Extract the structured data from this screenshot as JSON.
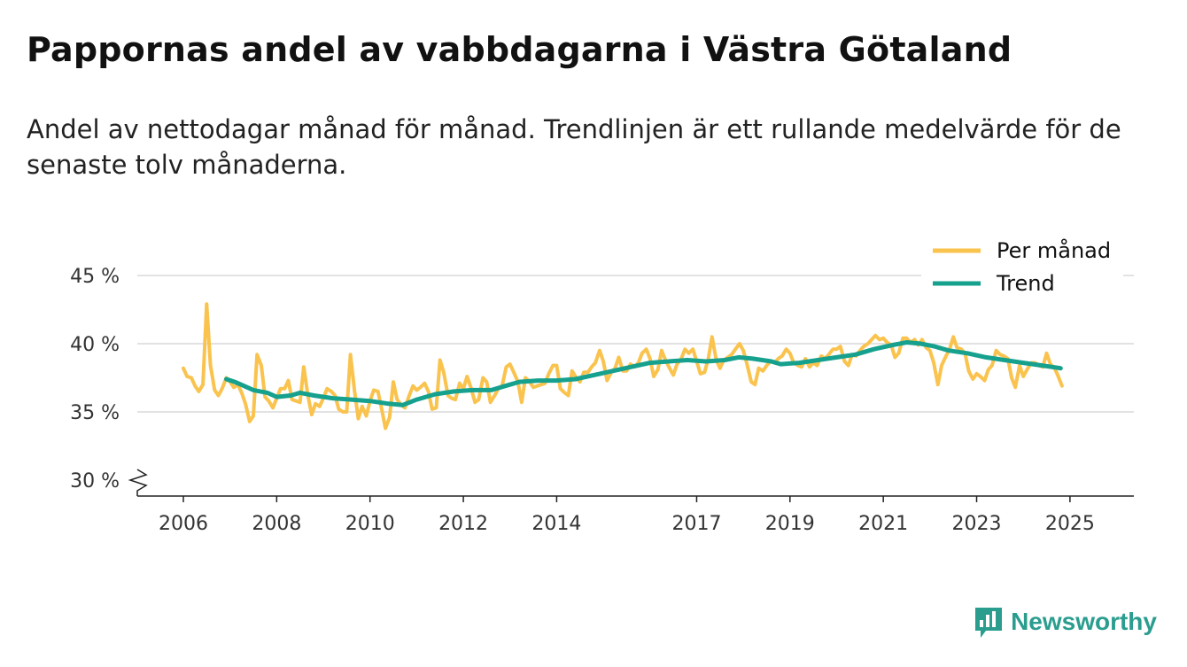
{
  "header": {
    "title": "Pappornas andel av vabbdagarna i Västra Götaland",
    "subtitle": "Andel av nettodagar månad för månad. Trendlinjen är ett rullande medelvärde för de senaste tolv månaderna."
  },
  "brand": {
    "name": "Newsworthy",
    "color": "#2a9d8f"
  },
  "chart_data": {
    "type": "line",
    "title": "Pappornas andel av vabbdagarna i Västra Götaland",
    "xlabel": "",
    "ylabel": "",
    "y_ticks": [
      30,
      35,
      40,
      45
    ],
    "y_tick_labels": [
      "30 %",
      "35 %",
      "40 %",
      "45 %"
    ],
    "y_axis_break": true,
    "x_ticks": [
      2006,
      2008,
      2010,
      2012,
      2014,
      2017,
      2019,
      2021,
      2023,
      2025
    ],
    "x_tick_labels": [
      "2006",
      "2008",
      "2010",
      "2012",
      "2014",
      "2017",
      "2019",
      "2021",
      "2023",
      "2025"
    ],
    "xlim": [
      2006,
      2025.42
    ],
    "ylim": [
      29,
      45
    ],
    "legend_position": "top-right",
    "series": [
      {
        "name": "Per månad",
        "color": "#f9c34e",
        "points": [
          [
            2006.0,
            38.2
          ],
          [
            2006.08,
            37.6
          ],
          [
            2006.17,
            37.5
          ],
          [
            2006.25,
            36.9
          ],
          [
            2006.33,
            36.5
          ],
          [
            2006.42,
            37.0
          ],
          [
            2006.5,
            42.9
          ],
          [
            2006.58,
            38.4
          ],
          [
            2006.67,
            36.6
          ],
          [
            2006.75,
            36.2
          ],
          [
            2006.83,
            36.7
          ],
          [
            2006.92,
            37.5
          ],
          [
            2007.0,
            37.2
          ],
          [
            2007.08,
            36.8
          ],
          [
            2007.17,
            37.0
          ],
          [
            2007.25,
            36.4
          ],
          [
            2007.33,
            35.6
          ],
          [
            2007.42,
            34.3
          ],
          [
            2007.5,
            34.7
          ],
          [
            2007.58,
            39.2
          ],
          [
            2007.67,
            38.4
          ],
          [
            2007.75,
            36.1
          ],
          [
            2007.83,
            35.8
          ],
          [
            2007.92,
            35.3
          ],
          [
            2008.0,
            36.0
          ],
          [
            2008.08,
            36.7
          ],
          [
            2008.17,
            36.7
          ],
          [
            2008.25,
            37.3
          ],
          [
            2008.33,
            35.9
          ],
          [
            2008.42,
            35.8
          ],
          [
            2008.5,
            35.7
          ],
          [
            2008.58,
            38.3
          ],
          [
            2008.67,
            36.2
          ],
          [
            2008.75,
            34.8
          ],
          [
            2008.83,
            35.6
          ],
          [
            2008.92,
            35.4
          ],
          [
            2009.0,
            36.0
          ],
          [
            2009.08,
            36.7
          ],
          [
            2009.17,
            36.5
          ],
          [
            2009.25,
            36.2
          ],
          [
            2009.33,
            35.2
          ],
          [
            2009.42,
            35.0
          ],
          [
            2009.5,
            35.0
          ],
          [
            2009.58,
            39.2
          ],
          [
            2009.67,
            36.5
          ],
          [
            2009.75,
            34.5
          ],
          [
            2009.83,
            35.4
          ],
          [
            2009.92,
            34.7
          ],
          [
            2010.0,
            35.8
          ],
          [
            2010.08,
            36.6
          ],
          [
            2010.17,
            36.5
          ],
          [
            2010.25,
            35.2
          ],
          [
            2010.33,
            33.8
          ],
          [
            2010.42,
            34.6
          ],
          [
            2010.5,
            37.2
          ],
          [
            2010.58,
            35.9
          ],
          [
            2010.67,
            35.5
          ],
          [
            2010.75,
            35.3
          ],
          [
            2010.83,
            36.1
          ],
          [
            2010.92,
            36.9
          ],
          [
            2011.0,
            36.6
          ],
          [
            2011.08,
            36.8
          ],
          [
            2011.17,
            37.1
          ],
          [
            2011.25,
            36.5
          ],
          [
            2011.33,
            35.2
          ],
          [
            2011.42,
            35.3
          ],
          [
            2011.5,
            38.8
          ],
          [
            2011.58,
            37.9
          ],
          [
            2011.67,
            36.2
          ],
          [
            2011.75,
            36.0
          ],
          [
            2011.83,
            35.9
          ],
          [
            2011.92,
            37.1
          ],
          [
            2012.0,
            36.7
          ],
          [
            2012.08,
            37.6
          ],
          [
            2012.17,
            36.7
          ],
          [
            2012.25,
            35.7
          ],
          [
            2012.33,
            35.9
          ],
          [
            2012.42,
            37.5
          ],
          [
            2012.5,
            37.2
          ],
          [
            2012.58,
            35.7
          ],
          [
            2012.67,
            36.2
          ],
          [
            2012.75,
            36.7
          ],
          [
            2012.83,
            36.9
          ],
          [
            2012.92,
            38.3
          ],
          [
            2013.0,
            38.5
          ],
          [
            2013.08,
            37.9
          ],
          [
            2013.17,
            37.2
          ],
          [
            2013.25,
            35.7
          ],
          [
            2013.33,
            37.5
          ],
          [
            2013.42,
            37.2
          ],
          [
            2013.5,
            36.8
          ],
          [
            2013.58,
            36.9
          ],
          [
            2013.67,
            37.0
          ],
          [
            2013.75,
            37.1
          ],
          [
            2013.83,
            37.8
          ],
          [
            2013.92,
            38.4
          ],
          [
            2014.0,
            38.4
          ],
          [
            2014.08,
            36.7
          ],
          [
            2014.17,
            36.4
          ],
          [
            2014.25,
            36.2
          ],
          [
            2014.33,
            38.0
          ],
          [
            2014.42,
            37.5
          ],
          [
            2014.5,
            37.2
          ],
          [
            2014.58,
            37.9
          ],
          [
            2014.67,
            37.9
          ],
          [
            2014.75,
            38.3
          ],
          [
            2014.83,
            38.6
          ],
          [
            2014.92,
            39.5
          ],
          [
            2015.0,
            38.7
          ],
          [
            2015.08,
            37.3
          ],
          [
            2015.17,
            37.9
          ],
          [
            2015.25,
            38.2
          ],
          [
            2015.33,
            39.0
          ],
          [
            2015.42,
            38.0
          ],
          [
            2015.5,
            38.0
          ],
          [
            2015.58,
            38.5
          ],
          [
            2015.67,
            38.3
          ],
          [
            2015.75,
            38.6
          ],
          [
            2015.83,
            39.3
          ],
          [
            2015.92,
            39.6
          ],
          [
            2016.0,
            38.9
          ],
          [
            2016.08,
            37.6
          ],
          [
            2016.17,
            38.1
          ],
          [
            2016.25,
            39.5
          ],
          [
            2016.33,
            38.8
          ],
          [
            2016.42,
            38.2
          ],
          [
            2016.5,
            37.7
          ],
          [
            2016.58,
            38.5
          ],
          [
            2016.67,
            38.9
          ],
          [
            2016.75,
            39.6
          ],
          [
            2016.83,
            39.3
          ],
          [
            2016.92,
            39.6
          ],
          [
            2017.0,
            38.7
          ],
          [
            2017.08,
            37.8
          ],
          [
            2017.17,
            37.9
          ],
          [
            2017.25,
            38.9
          ],
          [
            2017.33,
            40.5
          ],
          [
            2017.42,
            38.8
          ],
          [
            2017.5,
            38.2
          ],
          [
            2017.58,
            38.8
          ],
          [
            2017.67,
            39.0
          ],
          [
            2017.75,
            39.2
          ],
          [
            2017.83,
            39.6
          ],
          [
            2017.92,
            40.0
          ],
          [
            2018.0,
            39.5
          ],
          [
            2018.08,
            38.5
          ],
          [
            2018.17,
            37.2
          ],
          [
            2018.25,
            37.0
          ],
          [
            2018.33,
            38.2
          ],
          [
            2018.42,
            38.0
          ],
          [
            2018.5,
            38.4
          ],
          [
            2018.58,
            38.7
          ],
          [
            2018.67,
            38.6
          ],
          [
            2018.75,
            38.9
          ],
          [
            2018.83,
            39.1
          ],
          [
            2018.92,
            39.6
          ],
          [
            2019.0,
            39.3
          ],
          [
            2019.08,
            38.6
          ],
          [
            2019.17,
            38.4
          ],
          [
            2019.25,
            38.3
          ],
          [
            2019.33,
            38.9
          ],
          [
            2019.42,
            38.3
          ],
          [
            2019.5,
            38.6
          ],
          [
            2019.58,
            38.4
          ],
          [
            2019.67,
            39.1
          ],
          [
            2019.75,
            38.9
          ],
          [
            2019.83,
            39.2
          ],
          [
            2019.92,
            39.6
          ],
          [
            2020.0,
            39.6
          ],
          [
            2020.08,
            39.8
          ],
          [
            2020.17,
            38.7
          ],
          [
            2020.25,
            38.4
          ],
          [
            2020.33,
            39.2
          ],
          [
            2020.42,
            39.1
          ],
          [
            2020.5,
            39.5
          ],
          [
            2020.58,
            39.8
          ],
          [
            2020.67,
            40.0
          ],
          [
            2020.75,
            40.3
          ],
          [
            2020.83,
            40.6
          ],
          [
            2020.92,
            40.3
          ],
          [
            2021.0,
            40.4
          ],
          [
            2021.08,
            40.1
          ],
          [
            2021.17,
            39.9
          ],
          [
            2021.25,
            39.0
          ],
          [
            2021.33,
            39.3
          ],
          [
            2021.42,
            40.4
          ],
          [
            2021.5,
            40.4
          ],
          [
            2021.58,
            40.1
          ],
          [
            2021.67,
            40.3
          ],
          [
            2021.75,
            39.9
          ],
          [
            2021.83,
            40.3
          ],
          [
            2021.92,
            39.7
          ],
          [
            2022.0,
            39.5
          ],
          [
            2022.08,
            38.6
          ],
          [
            2022.17,
            37.0
          ],
          [
            2022.25,
            38.4
          ],
          [
            2022.33,
            39.0
          ],
          [
            2022.42,
            39.6
          ],
          [
            2022.5,
            40.5
          ],
          [
            2022.58,
            39.7
          ],
          [
            2022.67,
            39.6
          ],
          [
            2022.75,
            39.3
          ],
          [
            2022.83,
            38.0
          ],
          [
            2022.92,
            37.4
          ],
          [
            2023.0,
            37.8
          ],
          [
            2023.08,
            37.6
          ],
          [
            2023.17,
            37.3
          ],
          [
            2023.25,
            38.1
          ],
          [
            2023.33,
            38.4
          ],
          [
            2023.42,
            39.5
          ],
          [
            2023.5,
            39.2
          ],
          [
            2023.58,
            39.1
          ],
          [
            2023.67,
            38.9
          ],
          [
            2023.75,
            37.5
          ],
          [
            2023.83,
            36.8
          ],
          [
            2023.92,
            38.4
          ],
          [
            2024.0,
            37.6
          ],
          [
            2024.08,
            38.1
          ],
          [
            2024.17,
            38.6
          ],
          [
            2024.25,
            38.6
          ],
          [
            2024.33,
            38.4
          ],
          [
            2024.42,
            38.3
          ],
          [
            2024.5,
            39.3
          ],
          [
            2024.58,
            38.5
          ],
          [
            2024.67,
            38.2
          ],
          [
            2024.75,
            37.6
          ],
          [
            2024.83,
            36.9
          ]
        ]
      },
      {
        "name": "Trend",
        "color": "#16a08e",
        "points": [
          [
            2006.92,
            37.4
          ],
          [
            2007.1,
            37.2
          ],
          [
            2007.3,
            36.9
          ],
          [
            2007.5,
            36.6
          ],
          [
            2007.8,
            36.4
          ],
          [
            2008.0,
            36.1
          ],
          [
            2008.3,
            36.2
          ],
          [
            2008.5,
            36.4
          ],
          [
            2008.8,
            36.2
          ],
          [
            2009.2,
            36.0
          ],
          [
            2009.6,
            35.9
          ],
          [
            2010.0,
            35.8
          ],
          [
            2010.4,
            35.6
          ],
          [
            2010.7,
            35.5
          ],
          [
            2011.0,
            35.9
          ],
          [
            2011.4,
            36.3
          ],
          [
            2011.8,
            36.5
          ],
          [
            2012.2,
            36.6
          ],
          [
            2012.6,
            36.6
          ],
          [
            2012.9,
            36.9
          ],
          [
            2013.2,
            37.2
          ],
          [
            2013.6,
            37.3
          ],
          [
            2014.0,
            37.3
          ],
          [
            2014.4,
            37.4
          ],
          [
            2014.8,
            37.7
          ],
          [
            2015.2,
            38.0
          ],
          [
            2015.6,
            38.3
          ],
          [
            2016.0,
            38.6
          ],
          [
            2016.4,
            38.7
          ],
          [
            2016.8,
            38.8
          ],
          [
            2017.2,
            38.7
          ],
          [
            2017.6,
            38.8
          ],
          [
            2017.9,
            39.0
          ],
          [
            2018.2,
            38.9
          ],
          [
            2018.6,
            38.7
          ],
          [
            2018.8,
            38.5
          ],
          [
            2019.2,
            38.6
          ],
          [
            2019.6,
            38.8
          ],
          [
            2020.0,
            39.0
          ],
          [
            2020.4,
            39.2
          ],
          [
            2020.8,
            39.6
          ],
          [
            2021.2,
            39.9
          ],
          [
            2021.5,
            40.1
          ],
          [
            2021.8,
            40.0
          ],
          [
            2022.1,
            39.8
          ],
          [
            2022.4,
            39.5
          ],
          [
            2022.8,
            39.3
          ],
          [
            2023.2,
            39.0
          ],
          [
            2023.6,
            38.8
          ],
          [
            2024.0,
            38.6
          ],
          [
            2024.4,
            38.4
          ],
          [
            2024.8,
            38.2
          ]
        ]
      }
    ]
  }
}
